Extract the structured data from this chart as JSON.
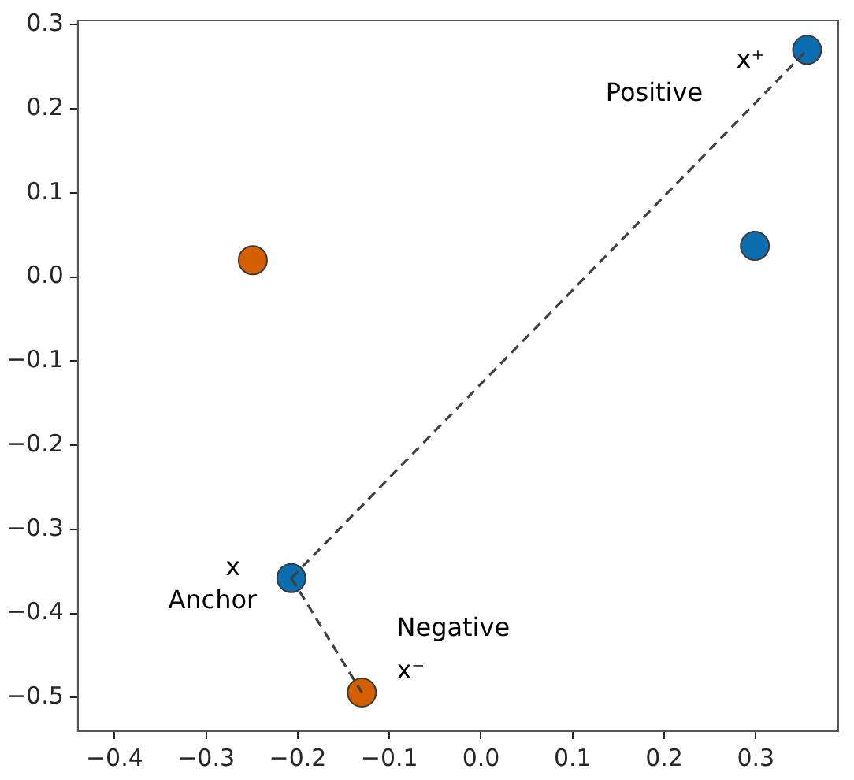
{
  "chart_data": {
    "type": "scatter",
    "xlim": [
      -0.44,
      0.39
    ],
    "ylim": [
      -0.54,
      0.305
    ],
    "xticks": [
      {
        "value": -0.4,
        "label": "−0.4"
      },
      {
        "value": -0.3,
        "label": "−0.3"
      },
      {
        "value": -0.2,
        "label": "−0.2"
      },
      {
        "value": -0.1,
        "label": "−0.1"
      },
      {
        "value": 0,
        "label": "0.0"
      },
      0.1,
      0.2,
      0.3
    ],
    "yticks": [
      {
        "value": -0.5,
        "label": "−0.5"
      },
      {
        "value": -0.4,
        "label": "−0.4"
      },
      {
        "value": -0.3,
        "label": "−0.3"
      },
      {
        "value": -0.2,
        "label": "−0.2"
      },
      {
        "value": -0.1,
        "label": "−0.1"
      },
      {
        "value": 0,
        "label": "0.0"
      },
      0.1,
      0.2,
      0.3
    ],
    "grid": false,
    "legend": false,
    "marker": "circle",
    "series": [
      {
        "type": "scatter",
        "color": "#0a6eb0",
        "x": [
          0.356,
          0.299,
          -0.207
        ],
        "values": [
          0.27,
          0.037,
          -0.358
        ]
      },
      {
        "type": "scatter",
        "color": "#d35f00",
        "x": [
          -0.249,
          -0.13
        ],
        "values": [
          0.02,
          -0.494
        ]
      },
      {
        "type": "line",
        "color": "#404040",
        "line_style": "dashed",
        "marker": "none",
        "x": [
          -0.207,
          0.356
        ],
        "values": [
          -0.358,
          0.27
        ]
      },
      {
        "type": "line",
        "color": "#404040",
        "line_style": "dashed",
        "marker": "none",
        "x": [
          -0.207,
          -0.13
        ],
        "values": [
          -0.358,
          -0.494
        ]
      }
    ],
    "annotations": [
      {
        "text": "x⁺",
        "x": 0.356,
        "y": 0.27
      },
      "Positive",
      {
        "text": "x",
        "x": -0.207,
        "y": -0.358
      },
      {
        "text": "Anchor",
        "x": -0.207,
        "y": -0.358
      },
      {
        "text": "Negative",
        "x": -0.13,
        "y": -0.494
      },
      {
        "text": "x⁻",
        "x": -0.13,
        "y": -0.494
      }
    ]
  }
}
